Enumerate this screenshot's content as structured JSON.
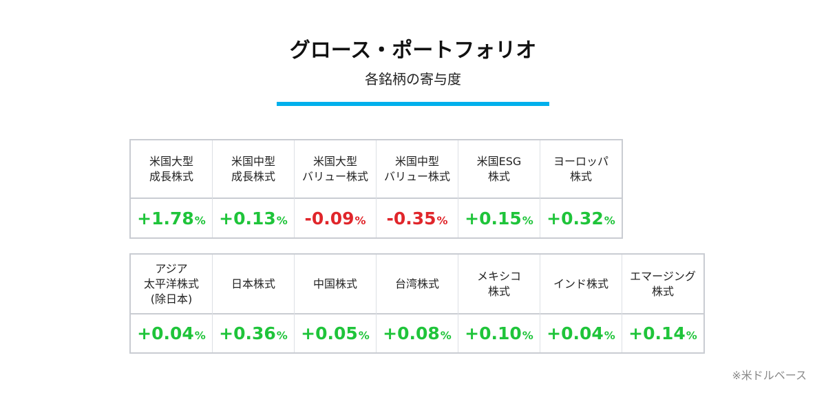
{
  "header": {
    "title": "グロース・ポートフォリオ",
    "subtitle": "各銘柄の寄与度"
  },
  "unit": "%",
  "positive_color": "#1fc43a",
  "negative_color": "#e0262b",
  "tables": [
    {
      "cells": [
        {
          "label": [
            "米国大型",
            "成長株式"
          ],
          "value": "+1.78"
        },
        {
          "label": [
            "米国中型",
            "成長株式"
          ],
          "value": "+0.13"
        },
        {
          "label": [
            "米国大型",
            "バリュー株式"
          ],
          "value": "-0.09"
        },
        {
          "label": [
            "米国中型",
            "バリュー株式"
          ],
          "value": "-0.35"
        },
        {
          "label": [
            "米国ESG",
            "株式"
          ],
          "value": "+0.15"
        },
        {
          "label": [
            "ヨーロッパ",
            "株式"
          ],
          "value": "+0.32"
        }
      ]
    },
    {
      "cells": [
        {
          "label": [
            "アジア",
            "太平洋株式",
            "(除日本)"
          ],
          "value": "+0.04"
        },
        {
          "label": [
            "日本株式"
          ],
          "value": "+0.36"
        },
        {
          "label": [
            "中国株式"
          ],
          "value": "+0.05"
        },
        {
          "label": [
            "台湾株式"
          ],
          "value": "+0.08"
        },
        {
          "label": [
            "メキシコ",
            "株式"
          ],
          "value": "+0.10"
        },
        {
          "label": [
            "インド株式"
          ],
          "value": "+0.04"
        },
        {
          "label": [
            "エマージング",
            "株式"
          ],
          "value": "+0.14"
        }
      ]
    }
  ],
  "footnote": "※米ドルベース"
}
